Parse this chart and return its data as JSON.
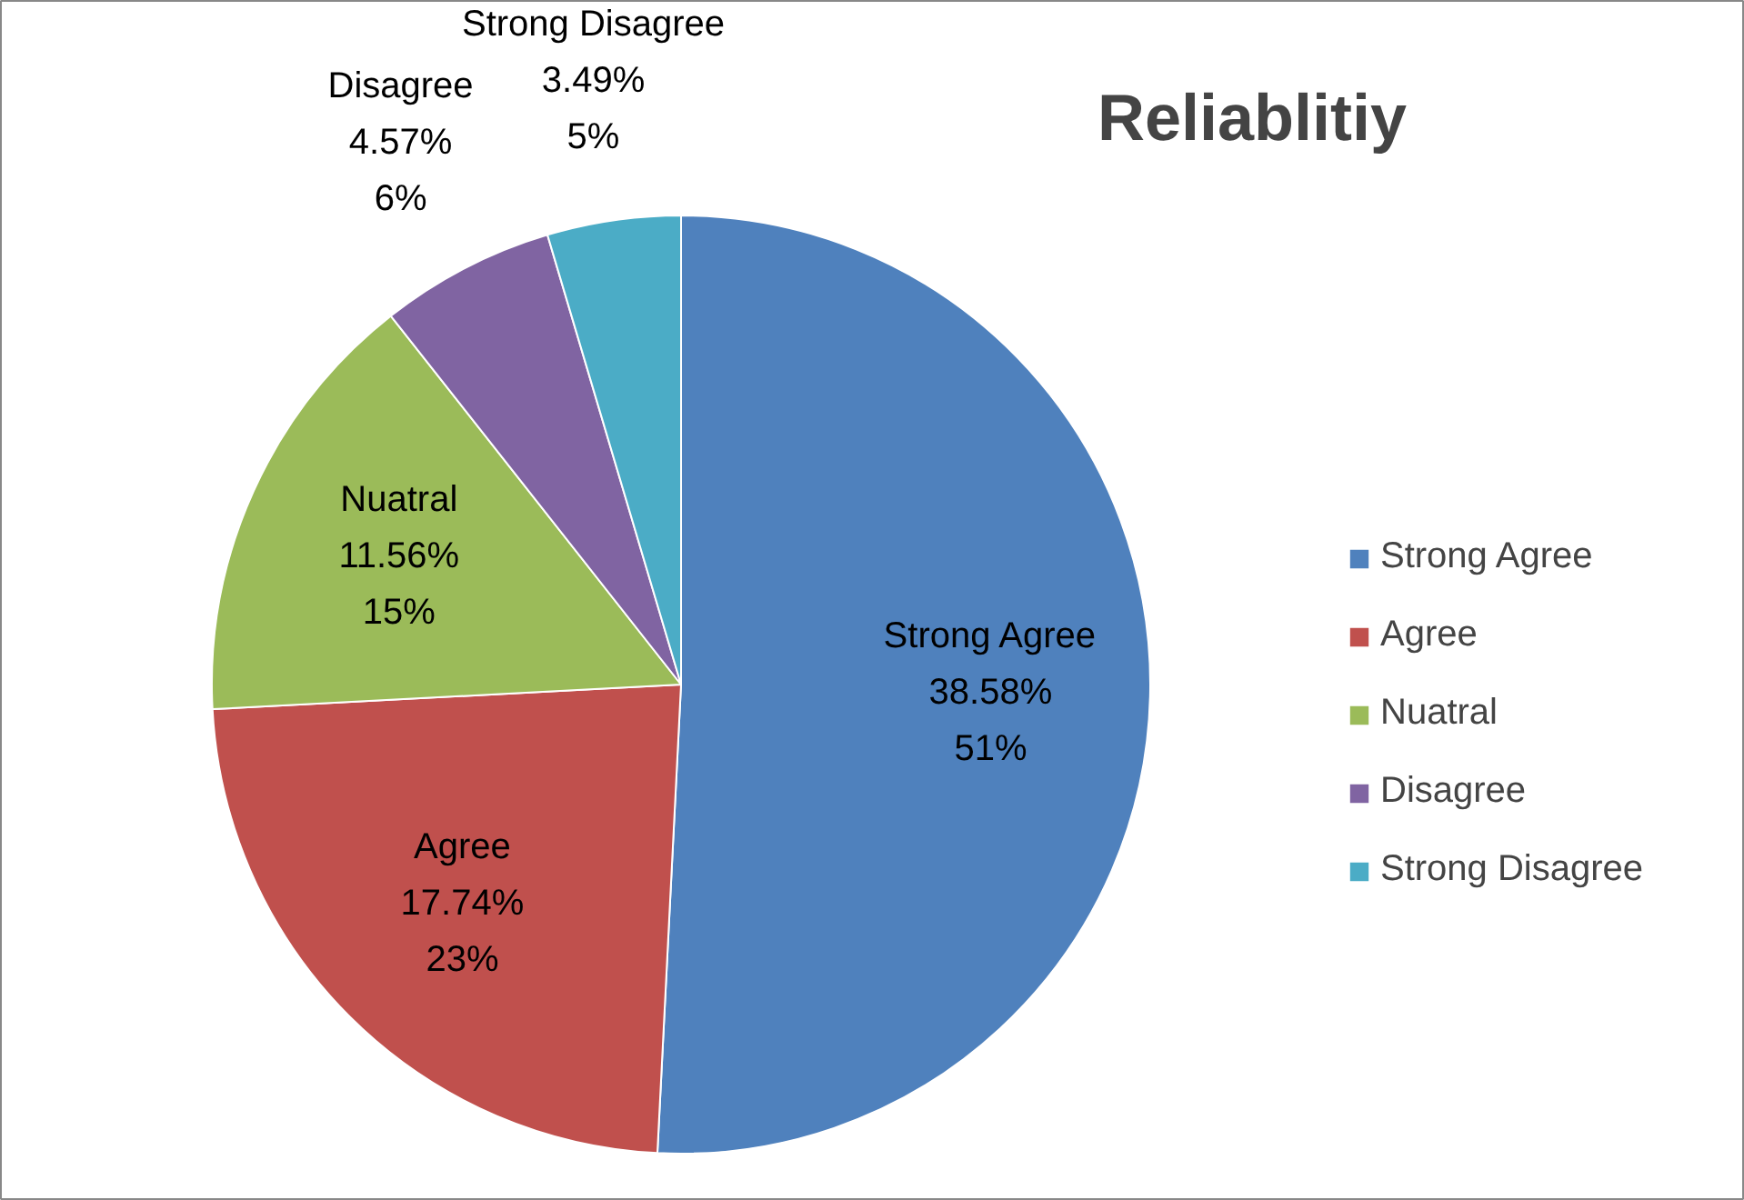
{
  "chart_data": {
    "type": "pie",
    "title": "Reliablitiy",
    "categories": [
      "Strong Agree",
      "Agree",
      "Nuatral",
      "Disagree",
      "Strong Disagree"
    ],
    "values": [
      38.58,
      17.74,
      11.56,
      4.57,
      3.49
    ],
    "colors": [
      "#4f81bd",
      "#c0504d",
      "#9bbb59",
      "#8064a2",
      "#4bacc6"
    ],
    "value_labels": [
      "38.58%\n51%",
      "17.74%\n23%",
      "11.56%\n15%",
      "4.57%\n6%",
      "3.49%\n5%"
    ],
    "legend": "right"
  }
}
